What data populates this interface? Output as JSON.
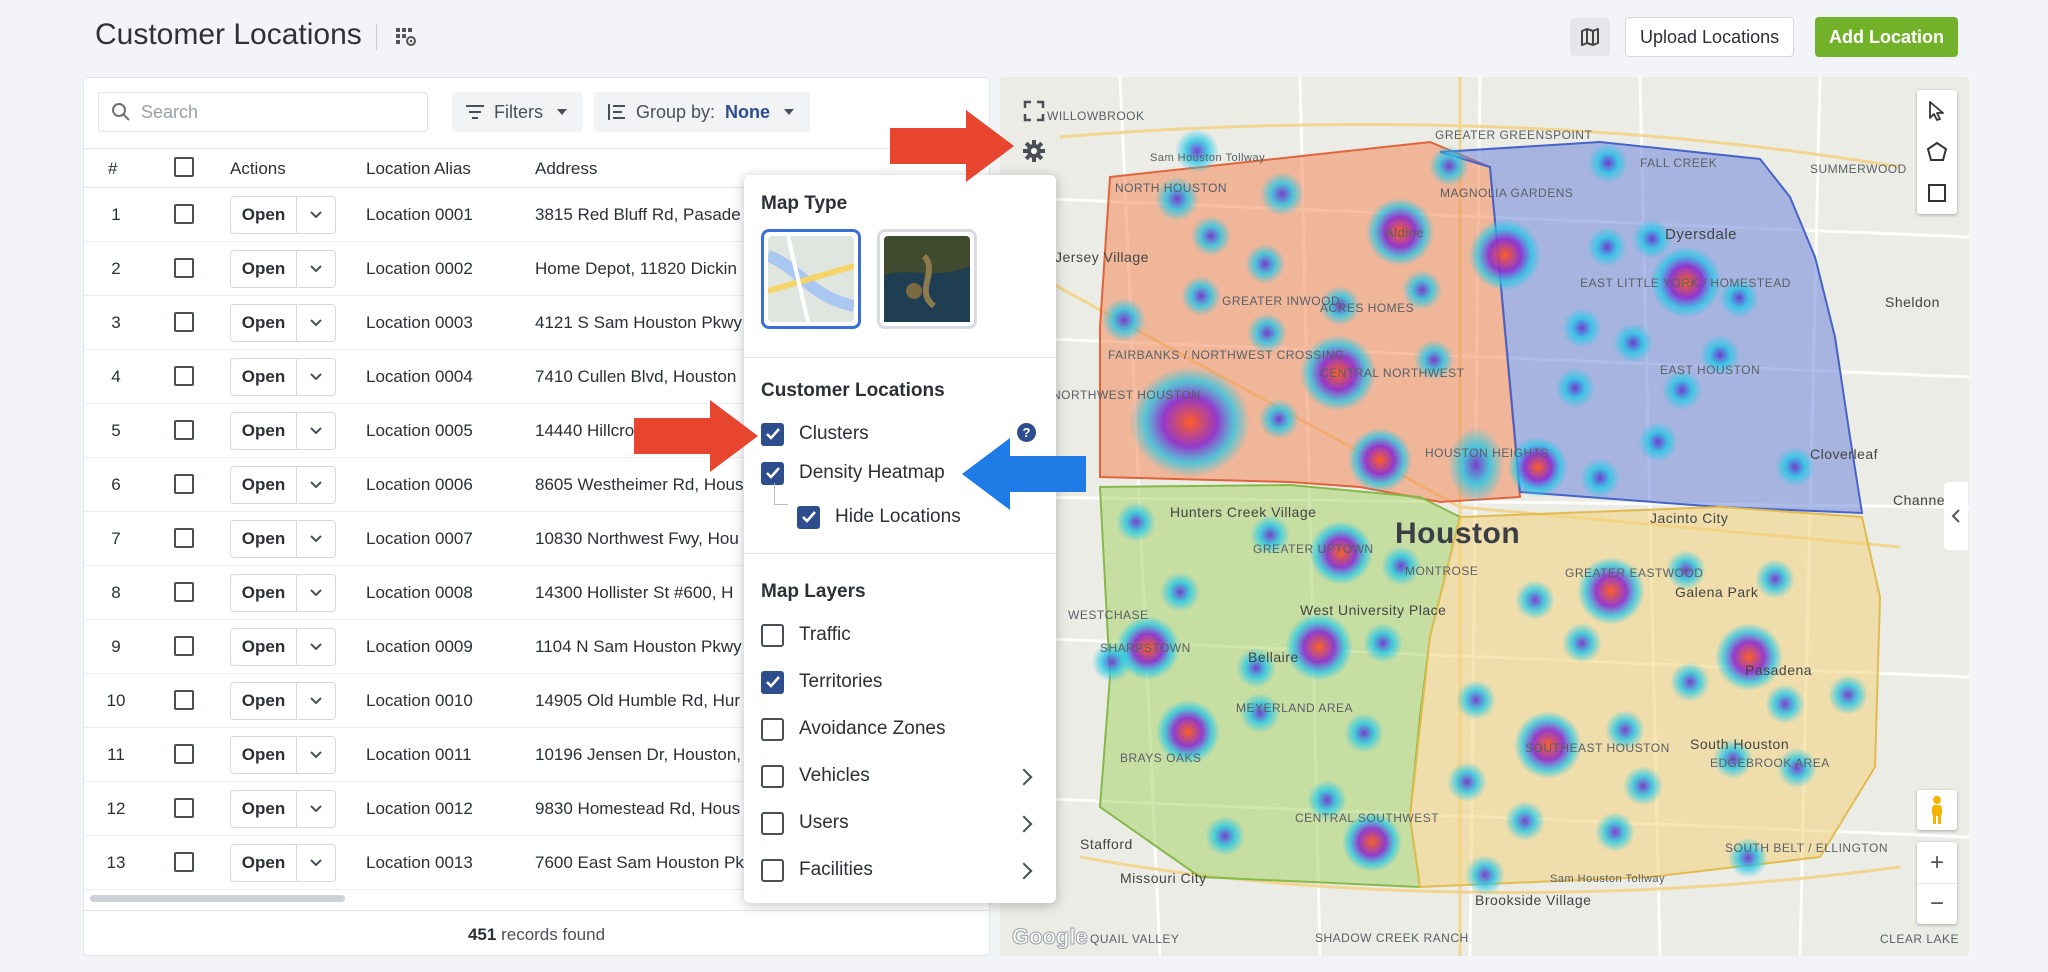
{
  "header": {
    "title": "Customer Locations",
    "upload_label": "Upload Locations",
    "add_label": "Add Location"
  },
  "toolbar": {
    "search_placeholder": "Search",
    "filters_label": "Filters",
    "groupby_label": "Group by:",
    "groupby_value": "None"
  },
  "table": {
    "columns": [
      "#",
      "",
      "Actions",
      "Location Alias",
      "Address"
    ],
    "open_label": "Open",
    "rows": [
      {
        "num": "1",
        "alias": "Location 0001",
        "address": "3815 Red Bluff Rd, Pasade"
      },
      {
        "num": "2",
        "alias": "Location 0002",
        "address": "Home Depot, 11820 Dickin"
      },
      {
        "num": "3",
        "alias": "Location 0003",
        "address": "4121 S Sam Houston Pkwy"
      },
      {
        "num": "4",
        "alias": "Location 0004",
        "address": "7410 Cullen Blvd, Houston"
      },
      {
        "num": "5",
        "alias": "Location 0005",
        "address": "14440 Hillcro"
      },
      {
        "num": "6",
        "alias": "Location 0006",
        "address": "8605 Westheimer Rd, Hous"
      },
      {
        "num": "7",
        "alias": "Location 0007",
        "address": "10830 Northwest Fwy, Hou"
      },
      {
        "num": "8",
        "alias": "Location 0008",
        "address": "14300 Hollister St #600, H"
      },
      {
        "num": "9",
        "alias": "Location 0009",
        "address": "1104 N Sam Houston Pkwy"
      },
      {
        "num": "10",
        "alias": "Location 0010",
        "address": "14905 Old Humble Rd, Hur"
      },
      {
        "num": "11",
        "alias": "Location 0011",
        "address": "10196 Jensen Dr, Houston,"
      },
      {
        "num": "12",
        "alias": "Location 0012",
        "address": "9830 Homestead Rd, Hous"
      },
      {
        "num": "13",
        "alias": "Location 0013",
        "address": "7600 East Sam Houston Pk"
      }
    ],
    "records_count": "451",
    "records_label": "records found"
  },
  "settings": {
    "map_type_heading": "Map Type",
    "customer_locations_heading": "Customer Locations",
    "clusters_label": "Clusters",
    "help_glyph": "?",
    "density_label": "Density Heatmap",
    "hide_locations_label": "Hide Locations",
    "map_layers_heading": "Map Layers",
    "layers": {
      "traffic": "Traffic",
      "territories": "Territories",
      "avoidance": "Avoidance Zones",
      "vehicles": "Vehicles",
      "users": "Users",
      "facilities": "Facilities"
    }
  },
  "map": {
    "city_label": "Houston",
    "google_label": "Google",
    "labels": {
      "willowbrook": "WILLOWBROOK",
      "north_houston": "NORTH HOUSTON",
      "greater_greenspoint": "GREATER GREENSPOINT",
      "fall_creek": "FALL CREEK",
      "summerwood": "SUMMERWOOD",
      "magnolia_gardens": "MAGNOLIA GARDENS",
      "aldine": "Aldine",
      "dyersdale": "Dyersdale",
      "jersey_village": "Jersey Village",
      "greater_inwood": "GREATER INWOOD",
      "acres_homes": "ACRES HOMES",
      "east_little_york": "EAST LITTLE YORK / HOMESTEAD",
      "sheldon": "Sheldon",
      "fairbanks": "FAIRBANKS / NORTHWEST CROSSING",
      "central_northwest": "CENTRAL NORTHWEST",
      "east_houston": "EAST HOUSTON",
      "northwest_houston": "NORTHWEST HOUSTON",
      "cloverleaf": "Cloverleaf",
      "houston_heights": "HOUSTON HEIGHTS",
      "hunters_creek": "Hunters Creek Village",
      "greater_uptown": "GREATER UPTOWN",
      "jacinto_city": "Jacinto City",
      "channelview": "Channe",
      "montrose": "MONTROSE",
      "westchase": "WESTCHASE",
      "west_university": "West University Place",
      "greater_eastwood": "GREATER EASTWOOD",
      "galena_park": "Galena Park",
      "sharpstown": "SHARPSTOWN",
      "bellaire": "Bellaire",
      "pasadena": "Pasadena",
      "meyerland": "MEYERLAND AREA",
      "brays_oaks": "BRAYS OAKS",
      "southeast_houston": "SOUTHEAST HOUSTON",
      "south_houston": "South Houston",
      "edgebrook": "EDGEBROOK AREA",
      "central_southwest": "CENTRAL SOUTHWEST",
      "south_belt": "SOUTH BELT / ELLINGTON",
      "stafford": "Stafford",
      "missouri_city": "Missouri City",
      "brookside": "Brookside Village",
      "quail_valley": "QUAIL VALLEY",
      "shadow_creek": "SHADOW CREEK RANCH",
      "clear_lake": "CLEAR LAKE",
      "sam_houston_tollway": "Sam Houston Tollway"
    },
    "colors": {
      "territory_northwest": "#f28b5a",
      "territory_northeast": "#6e86d8",
      "territory_southwest": "#a9d46a",
      "territory_southeast": "#f3d37a"
    }
  },
  "annotations": {
    "arrow_red": "#e8452f",
    "arrow_blue": "#1f7be6"
  }
}
